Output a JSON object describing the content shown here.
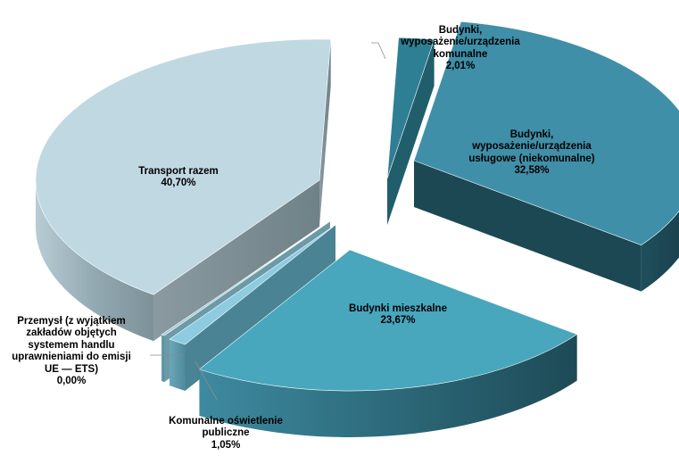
{
  "chart_data": {
    "type": "pie",
    "title": "",
    "legend": "none",
    "exploded": true,
    "style": "3d",
    "slices": [
      {
        "name": "Budynki,\nwyposażenie/urządzenia\nkomunalne",
        "value": 2.01,
        "label": "2,01%",
        "color": "#2e7f94"
      },
      {
        "name": "Budynki,\nwyposażenie/urządzenia\nusługowe (niekomunalne)",
        "value": 32.58,
        "label": "32,58%",
        "color": "#3f8fa8"
      },
      {
        "name": "Budynki  mieszkalne",
        "value": 23.67,
        "label": "23,67%",
        "color": "#48a6bd"
      },
      {
        "name": "Komunalne  oświetlenie\npubliczne",
        "value": 1.05,
        "label": "1,05%",
        "color": "#8ccbe0"
      },
      {
        "name": "Przemysł (z wyjątkiem\nzakładów objętych\nsystemem handlu\nuprawnieniami do emisji\nUE  — ETS)",
        "value": 0.0,
        "label": "0,00%",
        "color": "#a9c9d4"
      },
      {
        "name": "Transport razem",
        "value": 40.7,
        "label": "40,70%",
        "color": "#c0d8e2"
      }
    ]
  }
}
